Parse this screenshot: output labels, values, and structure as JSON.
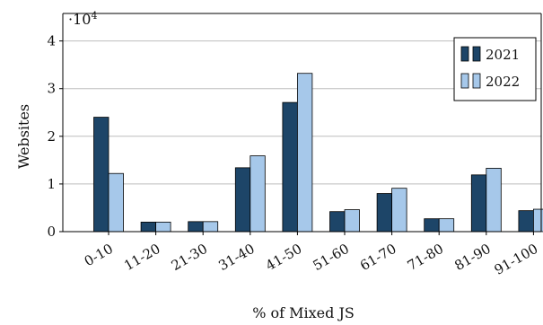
{
  "chart_data": {
    "type": "bar",
    "categories": [
      "0-10",
      "11-20",
      "21-30",
      "31-40",
      "41-50",
      "51-60",
      "61-70",
      "71-80",
      "81-90",
      "91-100"
    ],
    "series": [
      {
        "name": "2021",
        "color": "#1d4568",
        "values": [
          24000,
          2000,
          2100,
          13400,
          27100,
          4200,
          8000,
          2700,
          11900,
          4400
        ]
      },
      {
        "name": "2022",
        "color": "#a6c8ea",
        "values": [
          12200,
          2000,
          2100,
          15900,
          33200,
          4600,
          9100,
          2700,
          13300,
          4700
        ]
      }
    ],
    "xlabel": "% of Mixed JS",
    "ylabel": "Websites",
    "ylim": [
      0,
      42000
    ],
    "yticks": [
      0,
      10000,
      20000,
      30000,
      40000
    ],
    "ytick_labels": [
      "0",
      "1",
      "2",
      "3",
      "4"
    ],
    "y_scale_label": "·10",
    "y_scale_exponent": "4",
    "grid": "horizontal",
    "legend_position": "top-right"
  }
}
